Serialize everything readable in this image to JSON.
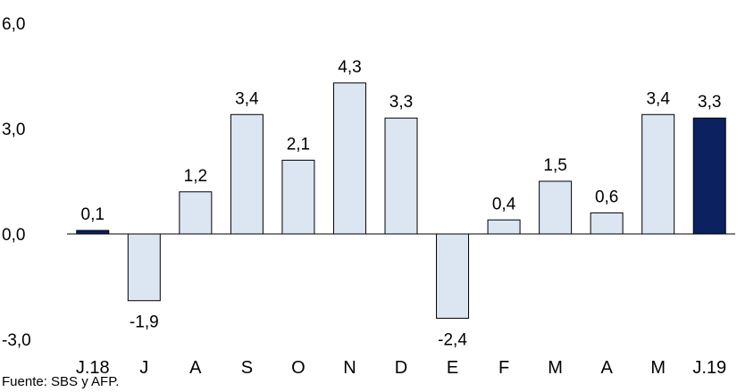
{
  "chart_data": {
    "type": "bar",
    "categories": [
      "J.18",
      "J",
      "A",
      "S",
      "O",
      "N",
      "D",
      "E",
      "F",
      "M",
      "A",
      "M",
      "J.19"
    ],
    "values": [
      0.1,
      -1.9,
      1.2,
      3.4,
      2.1,
      4.3,
      3.3,
      -2.4,
      0.4,
      1.5,
      0.6,
      3.4,
      3.3
    ],
    "data_labels": [
      "0,1",
      "-1,9",
      "1,2",
      "3,4",
      "2,1",
      "4,3",
      "3,3",
      "-2,4",
      "0,4",
      "1,5",
      "0,6",
      "3,4",
      "3,3"
    ],
    "yticks": [
      -3.0,
      0.0,
      3.0,
      6.0
    ],
    "ytick_labels": [
      "-3,0",
      "0,0",
      "3,0",
      "6,0"
    ],
    "ylim": [
      -3.0,
      6.0
    ],
    "grid": false,
    "highlighted_categories": [
      "J.18",
      "J.19"
    ],
    "colors": {
      "bar_fill": "#dce6f2",
      "bar_border": "#000000",
      "highlight_fill": "#0b2160",
      "axis": "#000000"
    }
  },
  "source_note": "Fuente: SBS y AFP."
}
